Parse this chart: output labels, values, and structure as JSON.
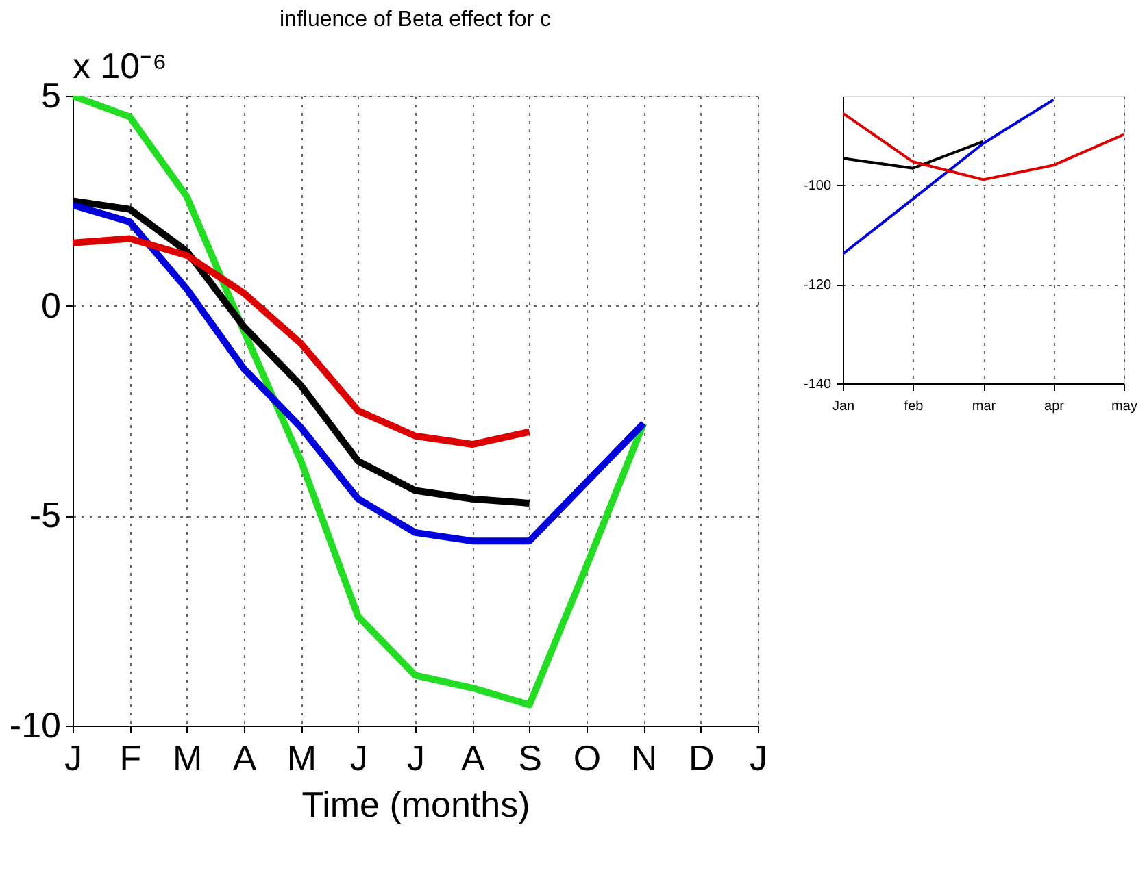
{
  "chart_data": [
    {
      "type": "line",
      "title": "influence of Beta effect for c",
      "xlabel": "Time (months)",
      "annotations": [
        "x 10⁻⁶"
      ],
      "categories": [
        "J",
        "F",
        "M",
        "A",
        "M",
        "J",
        "J",
        "A",
        "S",
        "O",
        "N",
        "D",
        "J"
      ],
      "ylim": [
        -10,
        5
      ],
      "yticks": [
        5,
        0,
        -5,
        -10
      ],
      "grid": true,
      "line_style": "solid",
      "series": [
        {
          "color": "#22dd22",
          "values": [
            5.0,
            4.5,
            2.6,
            -0.6,
            -3.7,
            -7.4,
            -8.8,
            -9.1,
            -9.5,
            -6.2,
            -2.8,
            null,
            null
          ]
        },
        {
          "color": "#000000",
          "values": [
            2.5,
            2.3,
            1.3,
            -0.5,
            -1.9,
            -3.7,
            -4.4,
            -4.6,
            -4.7,
            null,
            null,
            null,
            null
          ]
        },
        {
          "color": "#0000dd",
          "values": [
            2.4,
            2.0,
            0.4,
            -1.5,
            -2.9,
            -4.6,
            -5.4,
            -5.6,
            -5.6,
            -4.2,
            -2.8,
            null,
            null
          ]
        },
        {
          "color": "#dd0000",
          "values": [
            1.5,
            1.6,
            1.2,
            0.3,
            -0.9,
            -2.5,
            -3.1,
            -3.3,
            -3.0,
            null,
            null,
            null,
            null
          ]
        }
      ]
    },
    {
      "type": "line",
      "categories": [
        "Jan",
        "feb",
        "mar",
        "apr",
        "may"
      ],
      "ylim": [
        -140,
        -82
      ],
      "yticks": [
        -140,
        -120,
        -100
      ],
      "grid": true,
      "line_style": "solid",
      "series": [
        {
          "color": "#000000",
          "values": [
            -94.6,
            -96.6,
            -91.2,
            null,
            null
          ]
        },
        {
          "color": "#0000dd",
          "values": [
            -113.9,
            -102.8,
            -91.6,
            -82.8,
            null
          ]
        },
        {
          "color": "#dd0000",
          "values": [
            -85.5,
            -95.3,
            -98.9,
            -96.0,
            -89.8
          ]
        }
      ]
    }
  ]
}
